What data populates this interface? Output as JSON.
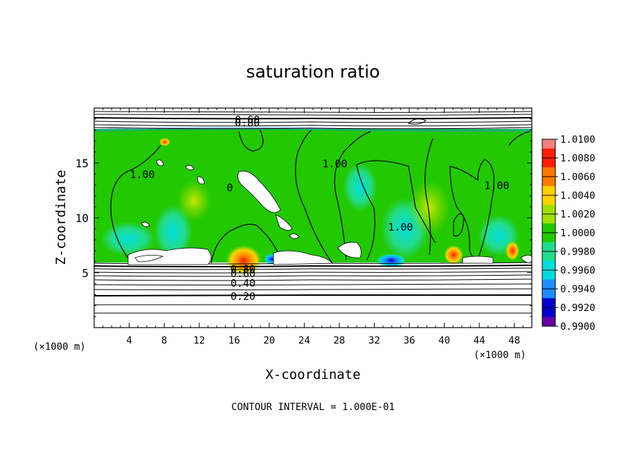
{
  "chart_data": {
    "type": "heatmap",
    "title": "saturation ratio",
    "xlabel": "X-coordinate",
    "ylabel": "Z-coordinate",
    "x_unit_left": "(×1000 m)",
    "x_unit_right": "(×1000 m)",
    "xlim": [
      0,
      50
    ],
    "ylim": [
      0,
      20
    ],
    "x_ticks": [
      4,
      8,
      12,
      16,
      20,
      24,
      28,
      32,
      36,
      40,
      44,
      48
    ],
    "y_ticks": [
      5,
      10,
      15
    ],
    "footer": "CONTOUR INTERVAL = 1.000E-01",
    "colorbar": {
      "labels": [
        "1.0100",
        "1.0080",
        "1.0060",
        "1.0040",
        "1.0020",
        "1.0000",
        "0.9980",
        "0.9960",
        "0.9940",
        "0.9920",
        "0.9900"
      ],
      "colors": [
        "#f08080",
        "#ff1e00",
        "#ff7800",
        "#ffd200",
        "#a0e000",
        "#22c800",
        "#22dc8c",
        "#00dcdc",
        "#1e8cff",
        "#0000c8",
        "#6400a0"
      ]
    },
    "contour_labels": [
      {
        "text": "0.60",
        "x": 17.5,
        "z": 19.0
      },
      {
        "text": "0.80",
        "x": 17.5,
        "z": 18.7
      },
      {
        "text": "1.00",
        "x": 5.5,
        "z": 14.0
      },
      {
        "text": "1.00",
        "x": 27.5,
        "z": 15.0
      },
      {
        "text": "1.00",
        "x": 35.0,
        "z": 9.2
      },
      {
        "text": "1.00",
        "x": 46.0,
        "z": 13.0
      },
      {
        "text": "0",
        "x": 15.5,
        "z": 12.8
      },
      {
        "text": "0.80",
        "x": 17.0,
        "z": 5.4
      },
      {
        "text": "0.60",
        "x": 17.0,
        "z": 5.0
      },
      {
        "text": "0.40",
        "x": 17.0,
        "z": 4.1
      },
      {
        "text": "0.20",
        "x": 17.0,
        "z": 2.9
      }
    ]
  }
}
